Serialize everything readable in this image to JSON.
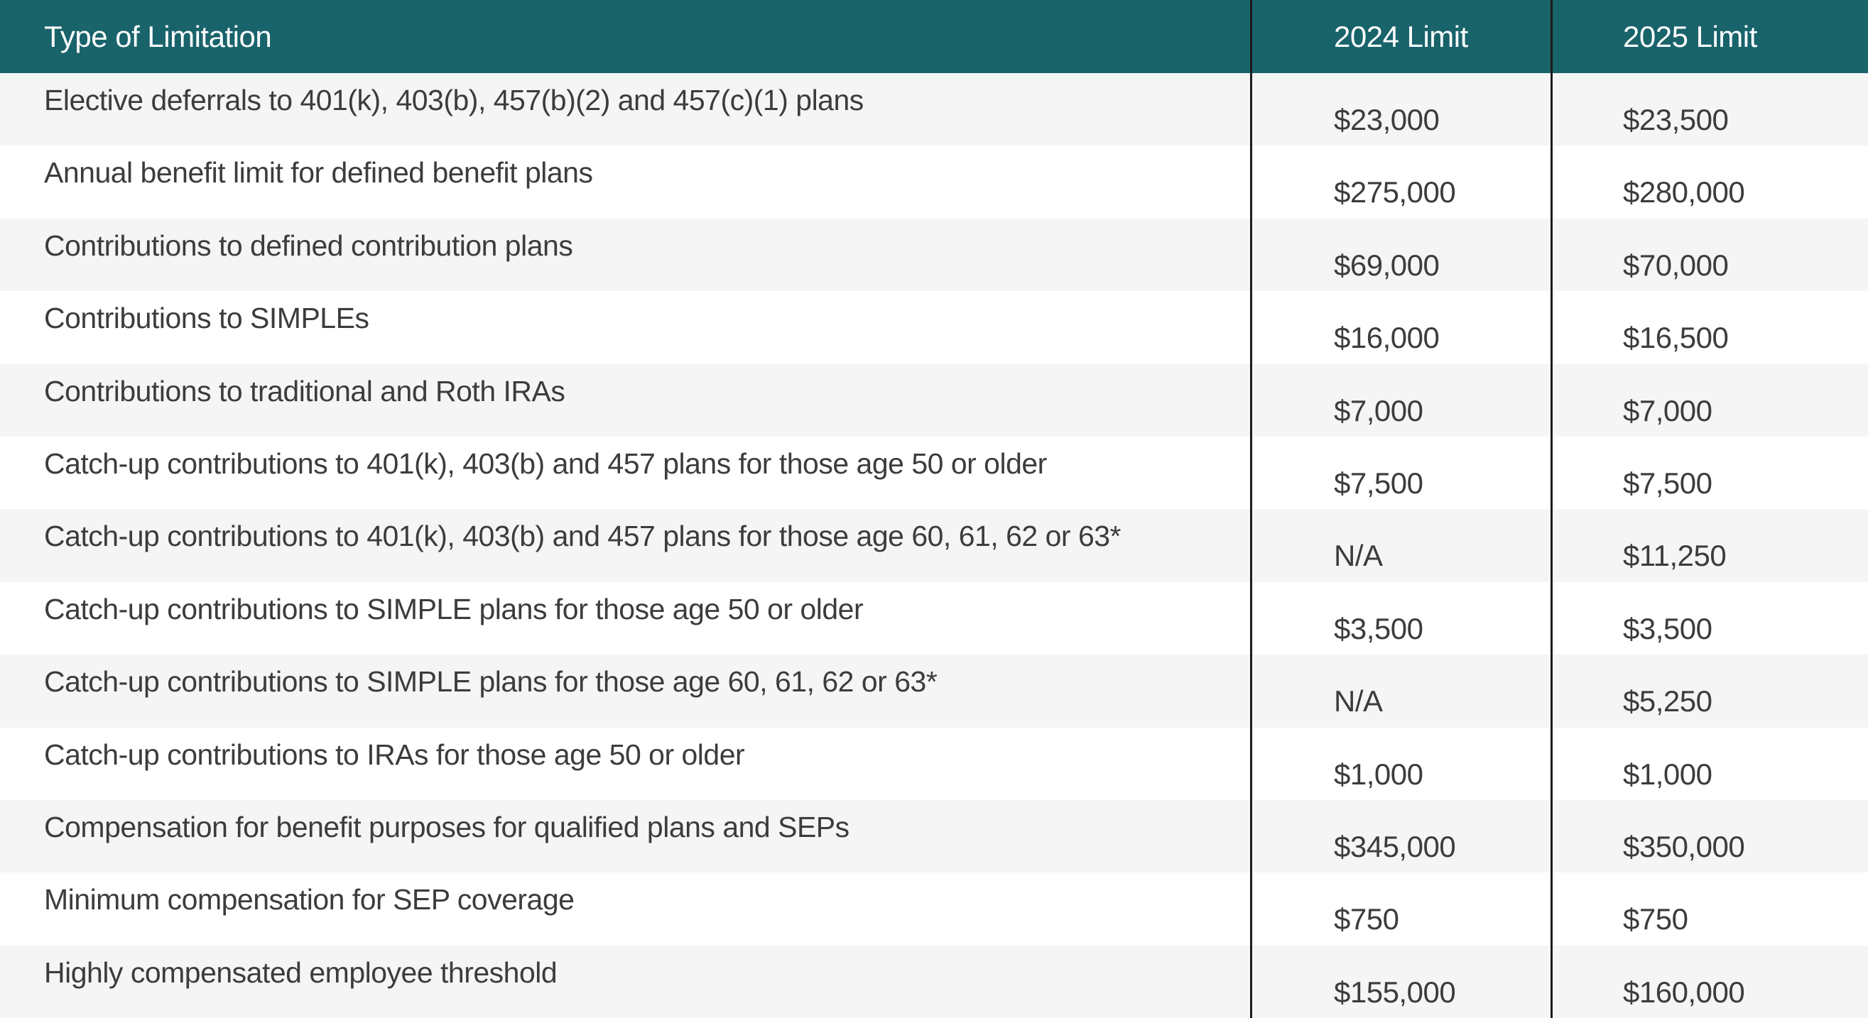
{
  "colors": {
    "header_bg": "#19636B",
    "header_text": "#FFFFFF",
    "stripe_bg": "#F5F5F5",
    "row_bg": "#FFFFFF",
    "text": "#3C3C3C",
    "divider": "#1C1C1C"
  },
  "table": {
    "headers": [
      "Type of Limitation",
      "2024 Limit",
      "2025 Limit"
    ],
    "rows": [
      {
        "label": "Elective deferrals to 401(k), 403(b), 457(b)(2) and 457(c)(1) plans",
        "limit_2024": "$23,000",
        "limit_2025": "$23,500"
      },
      {
        "label": "Annual benefit limit for defined benefit plans",
        "limit_2024": "$275,000",
        "limit_2025": "$280,000"
      },
      {
        "label": "Contributions to defined contribution plans",
        "limit_2024": "$69,000",
        "limit_2025": "$70,000"
      },
      {
        "label": "Contributions to SIMPLEs",
        "limit_2024": "$16,000",
        "limit_2025": "$16,500"
      },
      {
        "label": "Contributions to traditional and Roth IRAs",
        "limit_2024": "$7,000",
        "limit_2025": "$7,000"
      },
      {
        "label": "Catch-up contributions to 401(k), 403(b) and 457 plans for those age 50 or older",
        "limit_2024": "$7,500",
        "limit_2025": "$7,500"
      },
      {
        "label": "Catch-up contributions to 401(k), 403(b) and 457 plans for those age 60, 61, 62 or 63*",
        "limit_2024": "N/A",
        "limit_2025": "$11,250"
      },
      {
        "label": "Catch-up contributions to SIMPLE plans for those age 50 or older",
        "limit_2024": "$3,500",
        "limit_2025": "$3,500"
      },
      {
        "label": "Catch-up contributions to SIMPLE plans for those age 60, 61, 62 or 63*",
        "limit_2024": "N/A",
        "limit_2025": "$5,250"
      },
      {
        "label": "Catch-up contributions to IRAs for those age 50 or older",
        "limit_2024": "$1,000",
        "limit_2025": "$1,000"
      },
      {
        "label": "Compensation for benefit purposes for qualified plans and SEPs",
        "limit_2024": "$345,000",
        "limit_2025": "$350,000"
      },
      {
        "label": "Minimum compensation for SEP coverage",
        "limit_2024": "$750",
        "limit_2025": "$750"
      },
      {
        "label": "Highly compensated employee threshold",
        "limit_2024": "$155,000",
        "limit_2025": "$160,000"
      }
    ]
  },
  "chart_data": {
    "type": "table",
    "title": "Retirement plan limits: 2024 vs 2025",
    "columns": [
      "Type of Limitation",
      "2024 Limit",
      "2025 Limit"
    ],
    "categories": [
      "Elective deferrals to 401(k), 403(b), 457(b)(2) and 457(c)(1) plans",
      "Annual benefit limit for defined benefit plans",
      "Contributions to defined contribution plans",
      "Contributions to SIMPLEs",
      "Contributions to traditional and Roth IRAs",
      "Catch-up contributions to 401(k), 403(b) and 457 plans for those age 50 or older",
      "Catch-up contributions to 401(k), 403(b) and 457 plans for those age 60, 61, 62 or 63*",
      "Catch-up contributions to SIMPLE plans for those age 50 or older",
      "Catch-up contributions to SIMPLE plans for those age 60, 61, 62 or 63*",
      "Catch-up contributions to IRAs for those age 50 or older",
      "Compensation for benefit purposes for qualified plans and SEPs",
      "Minimum compensation for SEP coverage",
      "Highly compensated employee threshold"
    ],
    "series": [
      {
        "name": "2024 Limit",
        "values": [
          23000,
          275000,
          69000,
          16000,
          7000,
          7500,
          null,
          3500,
          null,
          1000,
          345000,
          750,
          155000
        ]
      },
      {
        "name": "2025 Limit",
        "values": [
          23500,
          280000,
          70000,
          16500,
          7000,
          7500,
          11250,
          3500,
          5250,
          1000,
          350000,
          750,
          160000
        ]
      }
    ]
  }
}
